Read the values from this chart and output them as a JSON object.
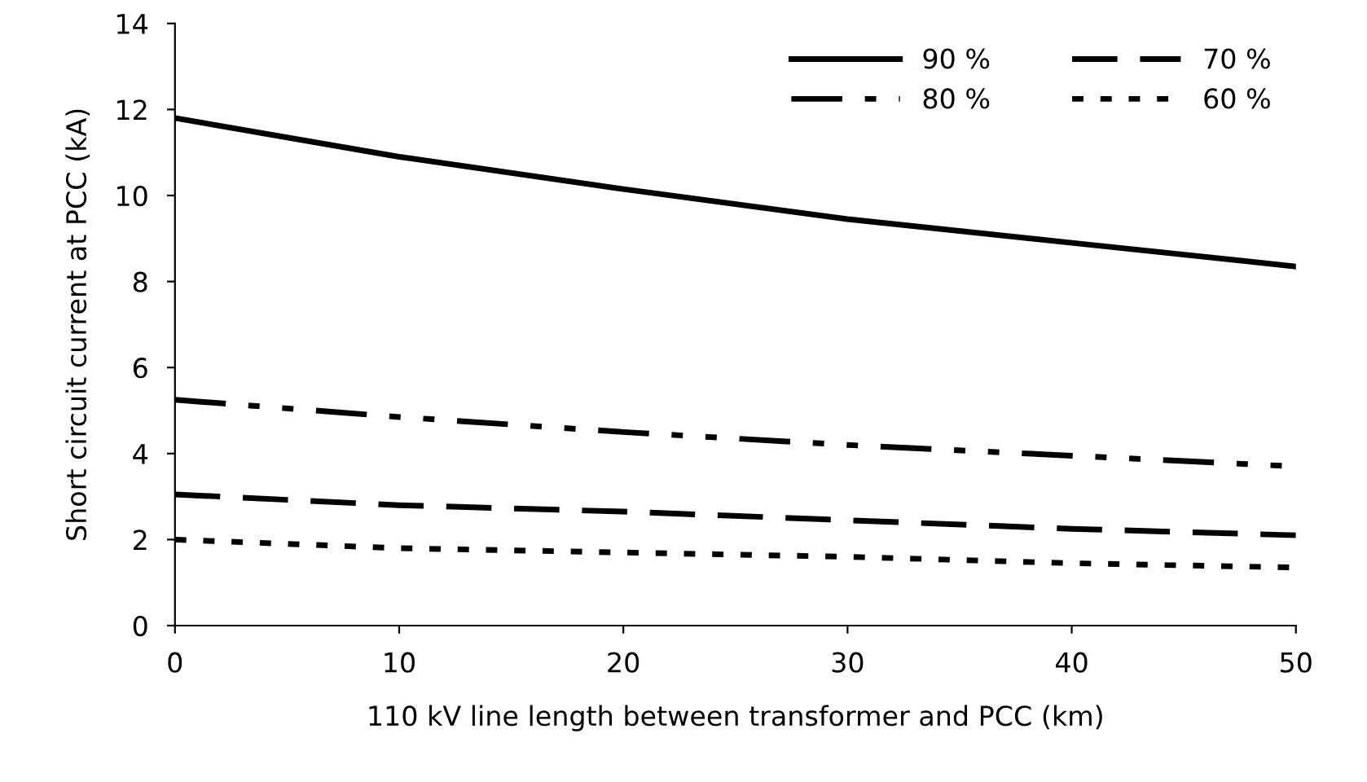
{
  "chart_data": {
    "type": "line",
    "xlabel": "110 kV line length between transformer and PCC (km)",
    "ylabel": "Short circuit current at PCC (kA)",
    "x": [
      0,
      10,
      20,
      30,
      40,
      50
    ],
    "series": [
      {
        "name": "90 %",
        "color": "#000000",
        "line_style": "solid",
        "values": [
          11.8,
          10.9,
          10.15,
          9.45,
          8.9,
          8.35
        ]
      },
      {
        "name": "80 %",
        "color": "#000000",
        "line_style": "dashdot",
        "values": [
          5.25,
          4.85,
          4.5,
          4.2,
          3.95,
          3.7
        ]
      },
      {
        "name": "70 %",
        "color": "#000000",
        "line_style": "dashed",
        "values": [
          3.05,
          2.8,
          2.65,
          2.45,
          2.25,
          2.1
        ]
      },
      {
        "name": "60 %",
        "color": "#000000",
        "line_style": "dotted",
        "values": [
          2.0,
          1.8,
          1.7,
          1.6,
          1.45,
          1.35
        ]
      }
    ],
    "xlim": [
      0,
      50
    ],
    "xticks": [
      0,
      10,
      20,
      30,
      40,
      50
    ],
    "ylim": [
      0,
      14
    ],
    "yticks": [
      0,
      2,
      4,
      6,
      8,
      10,
      12,
      14
    ],
    "grid": false,
    "legend": "top right",
    "marker": "none"
  }
}
